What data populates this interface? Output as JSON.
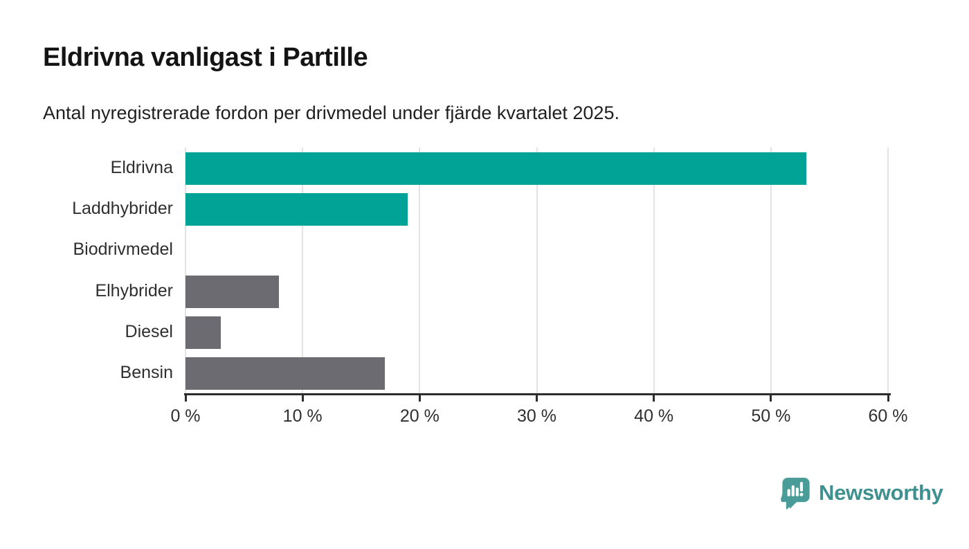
{
  "header": {
    "title": "Eldrivna vanligast i Partille",
    "subtitle": "Antal nyregistrerade fordon per drivmedel under fjärde kvartalet 2025."
  },
  "chart_data": {
    "type": "bar",
    "orientation": "horizontal",
    "title": "Eldrivna vanligast i Partille",
    "subtitle": "Antal nyregistrerade fordon per drivmedel under fjärde kvartalet 2025.",
    "categories": [
      "Eldrivna",
      "Laddhybrider",
      "Biodrivmedel",
      "Elhybrider",
      "Diesel",
      "Bensin"
    ],
    "values": [
      53,
      19,
      0,
      8,
      3,
      17
    ],
    "unit": "%",
    "xlim": [
      0,
      60
    ],
    "x_ticks": [
      {
        "value": 0,
        "label": "0 %"
      },
      {
        "value": 10,
        "label": "10 %"
      },
      {
        "value": 20,
        "label": "20 %"
      },
      {
        "value": 30,
        "label": "30 %"
      },
      {
        "value": 40,
        "label": "40 %"
      },
      {
        "value": 50,
        "label": "50 %"
      },
      {
        "value": 60,
        "label": "60 %"
      }
    ],
    "bar_colors": [
      "#00a396",
      "#00a396",
      "#6b6b71",
      "#6b6b71",
      "#6b6b71",
      "#6b6b71"
    ],
    "grid": "vertical",
    "legend": "none"
  },
  "footer": {
    "brand": "Newsworthy",
    "logo_icon": "bar-chart-speech-bubble",
    "brand_color": "#3f918f",
    "logo_bg_color": "#4a9c99"
  },
  "colors": {
    "accent_teal": "#00a396",
    "neutral_gray": "#6b6b71",
    "axis": "#2d2d2d",
    "gridline": "#e3e3e3",
    "background": "#ffffff"
  }
}
